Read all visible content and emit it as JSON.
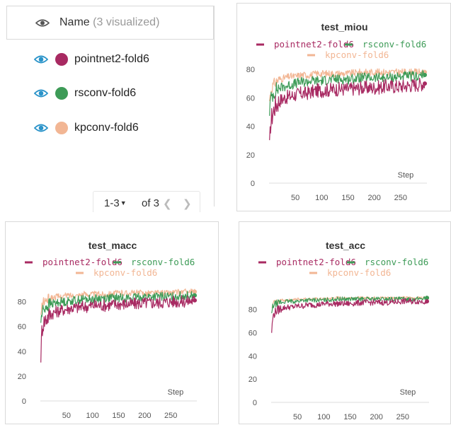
{
  "run_list": {
    "header": {
      "label": "Name",
      "count": "(3 visualized)"
    },
    "runs": [
      {
        "name": "pointnet2-fold6",
        "color": "#a82a62"
      },
      {
        "name": "rsconv-fold6",
        "color": "#3d9b57"
      },
      {
        "name": "kpconv-fold6",
        "color": "#f2b694"
      }
    ],
    "pagination": {
      "range": "1-3",
      "of": "of 3"
    }
  },
  "chart_data": [
    {
      "type": "line",
      "title": "test_miou",
      "xlabel": "Step",
      "ylabel": "",
      "xlim": [
        0,
        300
      ],
      "ylim": [
        0,
        80
      ],
      "xticks": [
        50,
        100,
        150,
        200,
        250
      ],
      "yticks": [
        0,
        20,
        40,
        60,
        80
      ],
      "legend": "top",
      "series": [
        {
          "name": "pointnet2-fold6",
          "color": "#a82a62",
          "x": [
            1,
            3,
            5,
            10,
            15,
            20,
            30,
            40,
            50,
            60,
            70,
            80,
            90,
            100,
            125,
            150,
            175,
            200,
            225,
            250,
            275,
            296
          ],
          "y": [
            24,
            42,
            46,
            53,
            56,
            58,
            60,
            61,
            62,
            63,
            63,
            64,
            65,
            65,
            66,
            66,
            67,
            67,
            68,
            68,
            69,
            70
          ]
        },
        {
          "name": "rsconv-fold6",
          "color": "#3d9b57",
          "x": [
            1,
            3,
            5,
            10,
            15,
            20,
            30,
            40,
            50,
            60,
            70,
            80,
            90,
            100,
            125,
            150,
            175,
            200,
            225,
            250,
            275,
            296
          ],
          "y": [
            51,
            58,
            61,
            64,
            66,
            67,
            68,
            69,
            70,
            71,
            71,
            72,
            72,
            72,
            73,
            73,
            74,
            74,
            74,
            75,
            75,
            76
          ]
        },
        {
          "name": "kpconv-fold6",
          "color": "#f2b694",
          "x": [
            1,
            3,
            5,
            10,
            15,
            20,
            30,
            40,
            50,
            60,
            70,
            80,
            90,
            100,
            125,
            150,
            175,
            200,
            225,
            250,
            275,
            296
          ],
          "y": [
            58,
            64,
            67,
            70,
            72,
            73,
            74,
            75,
            75,
            76,
            76,
            76,
            77,
            77,
            77,
            77,
            78,
            78,
            78,
            78,
            78,
            78
          ]
        }
      ]
    },
    {
      "type": "line",
      "title": "test_macc",
      "xlabel": "Step",
      "ylabel": "",
      "xlim": [
        0,
        300
      ],
      "ylim": [
        0,
        90
      ],
      "xticks": [
        50,
        100,
        150,
        200,
        250
      ],
      "yticks": [
        0,
        20,
        40,
        60,
        80
      ],
      "legend": "top",
      "series": [
        {
          "name": "pointnet2-fold6",
          "color": "#a82a62",
          "x": [
            1,
            3,
            5,
            10,
            15,
            20,
            30,
            40,
            50,
            60,
            70,
            80,
            90,
            100,
            125,
            150,
            175,
            200,
            225,
            250,
            275,
            296
          ],
          "y": [
            37,
            57,
            62,
            66,
            68,
            70,
            72,
            73,
            74,
            75,
            75,
            76,
            76,
            77,
            77,
            78,
            78,
            79,
            79,
            80,
            80,
            81
          ]
        },
        {
          "name": "rsconv-fold6",
          "color": "#3d9b57",
          "x": [
            1,
            3,
            5,
            10,
            15,
            20,
            30,
            40,
            50,
            60,
            70,
            80,
            90,
            100,
            125,
            150,
            175,
            200,
            225,
            250,
            275,
            296
          ],
          "y": [
            64,
            70,
            73,
            76,
            77,
            78,
            79,
            80,
            80,
            81,
            81,
            82,
            82,
            82,
            83,
            83,
            83,
            84,
            84,
            84,
            85,
            85
          ]
        },
        {
          "name": "kpconv-fold6",
          "color": "#f2b694",
          "x": [
            1,
            3,
            5,
            10,
            15,
            20,
            30,
            40,
            50,
            60,
            70,
            80,
            90,
            100,
            125,
            150,
            175,
            200,
            225,
            250,
            275,
            296
          ],
          "y": [
            68,
            76,
            79,
            81,
            82,
            83,
            84,
            84,
            85,
            85,
            85,
            86,
            86,
            86,
            86,
            87,
            87,
            87,
            87,
            87,
            88,
            88
          ]
        }
      ]
    },
    {
      "type": "line",
      "title": "test_acc",
      "xlabel": "Step",
      "ylabel": "",
      "xlim": [
        0,
        300
      ],
      "ylim": [
        0,
        95
      ],
      "xticks": [
        50,
        100,
        150,
        200,
        250
      ],
      "yticks": [
        0,
        20,
        40,
        60,
        80
      ],
      "legend": "top",
      "series": [
        {
          "name": "pointnet2-fold6",
          "color": "#a82a62",
          "x": [
            1,
            3,
            5,
            10,
            15,
            20,
            30,
            40,
            50,
            60,
            70,
            80,
            90,
            100,
            125,
            150,
            175,
            200,
            225,
            250,
            275,
            296
          ],
          "y": [
            61,
            72,
            76,
            79,
            80,
            81,
            82,
            82,
            83,
            83,
            84,
            84,
            84,
            85,
            85,
            85,
            86,
            86,
            86,
            87,
            87,
            87
          ]
        },
        {
          "name": "rsconv-fold6",
          "color": "#3d9b57",
          "x": [
            1,
            3,
            5,
            10,
            15,
            20,
            30,
            40,
            50,
            60,
            70,
            80,
            90,
            100,
            125,
            150,
            175,
            200,
            225,
            250,
            275,
            296
          ],
          "y": [
            76,
            82,
            84,
            85,
            86,
            86,
            87,
            87,
            87,
            88,
            88,
            88,
            88,
            88,
            89,
            89,
            89,
            89,
            89,
            89,
            89,
            90
          ]
        },
        {
          "name": "kpconv-fold6",
          "color": "#f2b694",
          "x": [
            1,
            3,
            5,
            10,
            15,
            20,
            30,
            40,
            50,
            60,
            70,
            80,
            90,
            100,
            125,
            150,
            175,
            200,
            225,
            250,
            275,
            296
          ],
          "y": [
            80,
            84,
            86,
            87,
            87,
            88,
            88,
            88,
            89,
            89,
            89,
            89,
            89,
            89,
            90,
            90,
            90,
            90,
            90,
            90,
            90,
            90
          ]
        }
      ]
    }
  ]
}
